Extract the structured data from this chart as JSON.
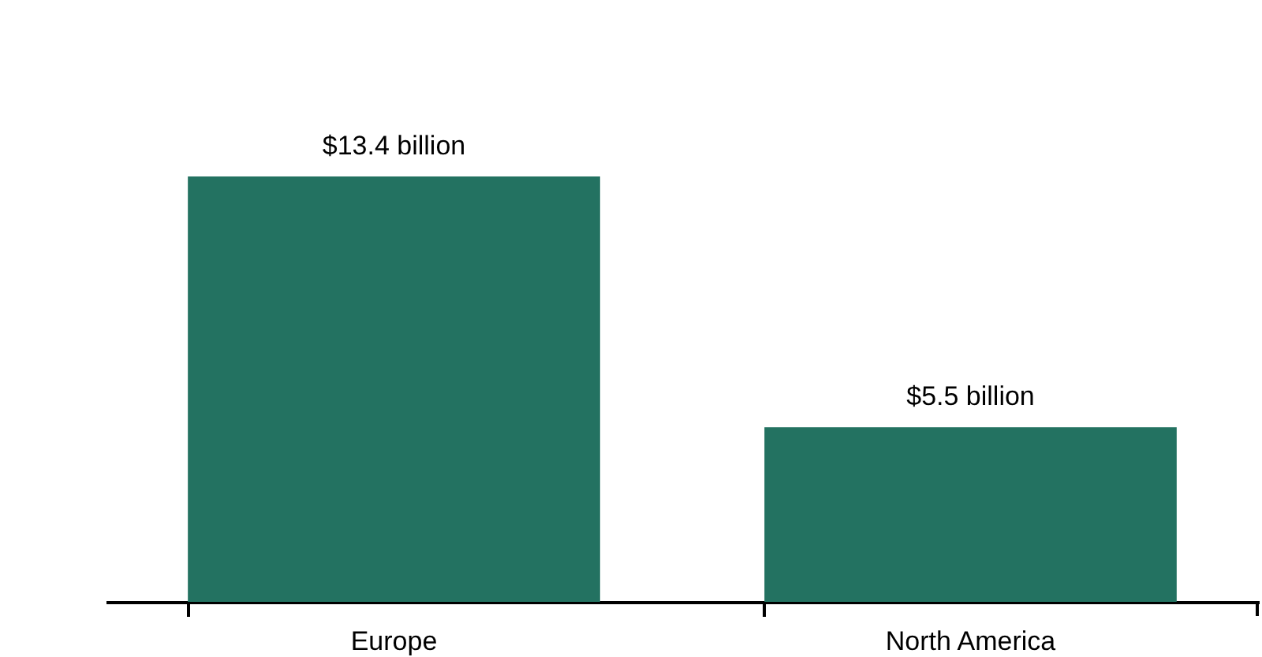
{
  "chart_data": {
    "type": "bar",
    "categories": [
      "Europe",
      "North America"
    ],
    "values": [
      13.4,
      5.5
    ],
    "color": "#237261",
    "value_labels": [
      "$13.4 billion",
      "$5.5 billion"
    ],
    "tick_labels": "x"
  }
}
